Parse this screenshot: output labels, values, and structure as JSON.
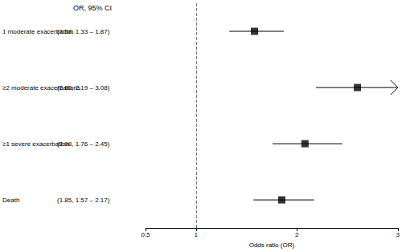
{
  "chart_data": {
    "type": "forest",
    "header": "OR, 95% CI",
    "x_label": "Odds ratio (OR)",
    "categories": [
      "1 moderate exacerbation",
      "≥2 moderate exacerbations",
      "≥1 severe exacerbation",
      "Death"
    ],
    "values": [
      1.58,
      2.6,
      2.08,
      1.85
    ],
    "lower": [
      1.33,
      2.19,
      1.76,
      1.57
    ],
    "upper": [
      1.87,
      3.08,
      2.45,
      2.17
    ],
    "value_labels": [
      "(1.58, 1.33 – 1.87)",
      "(2.60, 2.19 – 3.08)",
      "(2.08, 1.76 – 2.45)",
      "(1.85, 1.57 – 2.17)"
    ],
    "reference": 1,
    "xlim": [
      0.5,
      3
    ],
    "xticks": [
      0.5,
      1,
      2,
      3
    ],
    "color": "#000000",
    "marker": "square",
    "grid": false
  }
}
